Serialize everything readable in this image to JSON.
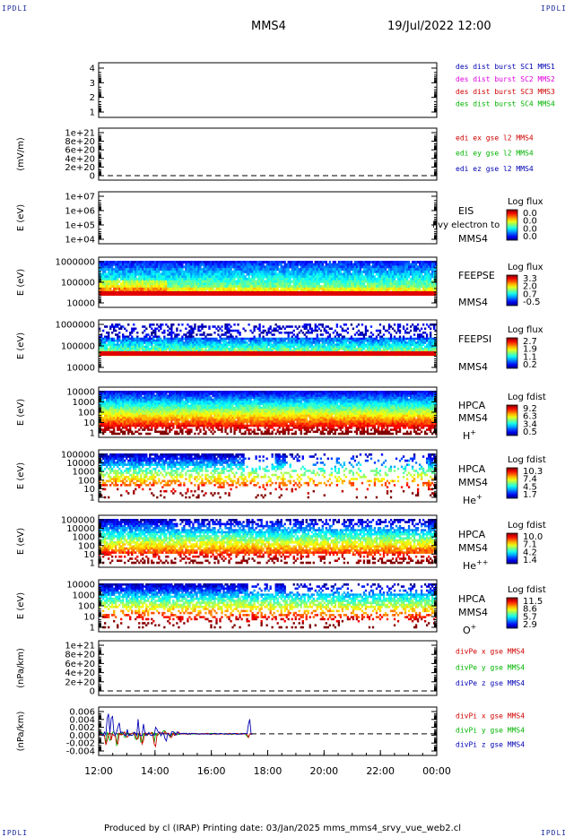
{
  "corners": {
    "label": "IPDLI"
  },
  "header": {
    "spacecraft": "MMS4",
    "datetime": "19/Jul/2022 12:00"
  },
  "footer": {
    "text": "Produced by cl (IRAP)   Printing date: 03/Jan/2025   mms_mms4_srvy_vue_web2.cl"
  },
  "time_axis": {
    "ticks": [
      "12:00",
      "14:00",
      "16:00",
      "18:00",
      "20:00",
      "22:00",
      "00:00"
    ]
  },
  "colors": {
    "blue": "#0000b4",
    "magenta": "#e000e0",
    "red": "#d00000",
    "green": "#00b400"
  },
  "chart_data": [
    {
      "type": "line",
      "panel": "des-dist-burst",
      "yticks": [
        "4",
        "3",
        "2",
        "1"
      ],
      "ylim": [
        0.5,
        4.5
      ],
      "legend": [
        {
          "text": "des dist burst SC1 MMS1",
          "color": "blue"
        },
        {
          "text": "des dist burst SC2 MMS2",
          "color": "magenta"
        },
        {
          "text": "des dist burst SC3 MMS3",
          "color": "red"
        },
        {
          "text": "des dist burst SC4 MMS4",
          "color": "green"
        }
      ]
    },
    {
      "type": "line",
      "panel": "edi-e",
      "ylabel": "(mV/m)",
      "yticks": [
        "1e+21",
        "8e+20",
        "6e+20",
        "4e+20",
        "2e+20",
        "0"
      ],
      "ylim": [
        0,
        1.1e+21
      ],
      "legend": [
        {
          "text": "edi ex gse l2 MMS4",
          "color": "red"
        },
        {
          "text": "edi ey gse l2 MMS4",
          "color": "green"
        },
        {
          "text": "edi ez gse l2 MMS4",
          "color": "blue"
        }
      ]
    },
    {
      "type": "heatmap",
      "panel": "eis",
      "ylabel": "E (eV)",
      "yticks": [
        "1e+07",
        "1e+06",
        "1e+05",
        "1e+04"
      ],
      "labels": [
        "EIS",
        "MMS4"
      ],
      "overlap_text": "l|vy electron to",
      "colorbar": {
        "title": "Log flux",
        "ticks": [
          "0.0",
          "0.0",
          "0.0",
          "0.0"
        ]
      }
    },
    {
      "type": "heatmap",
      "panel": "feeps-e",
      "ylabel": "E (eV)",
      "yticks": [
        "1000000",
        "100000",
        "10000"
      ],
      "labels": [
        "FEEPSE",
        "MMS4"
      ],
      "colorbar": {
        "title": "Log flux",
        "ticks": [
          "3.3",
          "2.0",
          "0.7",
          "-0.5"
        ]
      }
    },
    {
      "type": "heatmap",
      "panel": "feeps-i",
      "ylabel": "E (eV)",
      "yticks": [
        "1000000",
        "100000",
        "10000"
      ],
      "labels": [
        "FEEPSI",
        "MMS4"
      ],
      "colorbar": {
        "title": "Log flux",
        "ticks": [
          "2.7",
          "1.9",
          "1.1",
          "0.2"
        ]
      }
    },
    {
      "type": "heatmap",
      "panel": "hpca-h",
      "ylabel": "E (eV)",
      "yticks": [
        "10000",
        "1000",
        "100",
        "10",
        "1"
      ],
      "labels": [
        "HPCA",
        "MMS4"
      ],
      "species": "H",
      "species_sup": "+",
      "colorbar": {
        "title": "Log fdist",
        "ticks": [
          "9.2",
          "6.3",
          "3.4",
          "0.5"
        ]
      }
    },
    {
      "type": "heatmap",
      "panel": "hpca-he",
      "ylabel": "E (eV)",
      "yticks": [
        "100000",
        "10000",
        "1000",
        "100",
        "10",
        "1"
      ],
      "labels": [
        "HPCA",
        "MMS4"
      ],
      "species": "He",
      "species_sup": "+",
      "colorbar": {
        "title": "Log fdist",
        "ticks": [
          "10.3",
          "7.4",
          "4.5",
          "1.7"
        ]
      }
    },
    {
      "type": "heatmap",
      "panel": "hpca-he2",
      "ylabel": "E (eV)",
      "yticks": [
        "100000",
        "10000",
        "1000",
        "100",
        "10",
        "1"
      ],
      "labels": [
        "HPCA",
        "MMS4"
      ],
      "species": "He",
      "species_sup": "++",
      "colorbar": {
        "title": "Log fdist",
        "ticks": [
          "10.0",
          "7.1",
          "4.2",
          "1.4"
        ]
      }
    },
    {
      "type": "heatmap",
      "panel": "hpca-o",
      "ylabel": "E (eV)",
      "yticks": [
        "10000",
        "1000",
        "100",
        "10",
        "1"
      ],
      "labels": [
        "HPCA",
        "MMS4"
      ],
      "species": "O",
      "species_sup": "+",
      "colorbar": {
        "title": "Log fdist",
        "ticks": [
          "11.5",
          "8.6",
          "5.7",
          "2.9"
        ]
      }
    },
    {
      "type": "line",
      "panel": "divpe",
      "ylabel": "(nPa/km)",
      "yticks": [
        "1e+21",
        "8e+20",
        "6e+20",
        "4e+20",
        "2e+20",
        "0"
      ],
      "ylim": [
        0,
        1.1e+21
      ],
      "legend": [
        {
          "text": "divPe x gse MMS4",
          "color": "red"
        },
        {
          "text": "divPe y gse MMS4",
          "color": "green"
        },
        {
          "text": "divPe z gse MMS4",
          "color": "blue"
        }
      ]
    },
    {
      "type": "line",
      "panel": "divpi",
      "ylabel": "(nPa/km)",
      "yticks": [
        "0.006",
        "0.004",
        "0.002",
        "0.000",
        "-0.002",
        "-0.004"
      ],
      "ylim": [
        -0.005,
        0.0065
      ],
      "legend": [
        {
          "text": "divPi x gse MMS4",
          "color": "red"
        },
        {
          "text": "divPi y gse MMS4",
          "color": "green"
        },
        {
          "text": "divPi z gse MMS4",
          "color": "blue"
        }
      ]
    }
  ]
}
